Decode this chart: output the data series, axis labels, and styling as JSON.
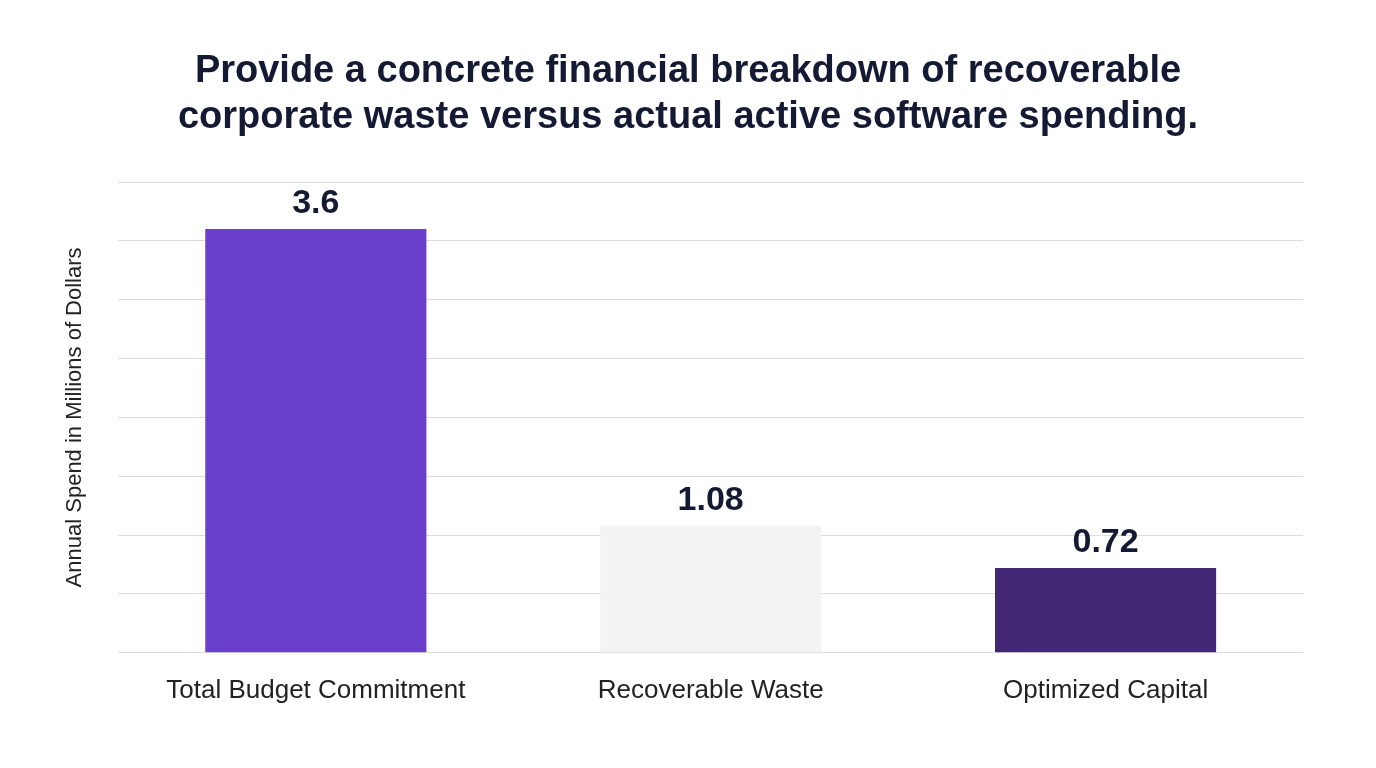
{
  "chart_data": {
    "type": "bar",
    "title": "Provide a concrete financial breakdown of recoverable corporate waste versus actual active software spending.",
    "ylabel": "Annual Spend in Millions of Dollars",
    "categories": [
      "Total Budget Commitment",
      "Recoverable Waste",
      "Optimized Capital"
    ],
    "values": [
      3.6,
      1.08,
      0.72
    ],
    "colors": [
      "#6a3fcc",
      "#f3f3f3",
      "#422874"
    ],
    "ylim": [
      0,
      4
    ],
    "yticks": [
      {
        "value": 0,
        "label": null
      },
      {
        "value": 0.5,
        "label": null
      },
      {
        "value": 1,
        "label": null
      },
      {
        "value": 1.5,
        "label": null
      },
      {
        "value": 2,
        "label": null
      },
      {
        "value": 2.5,
        "label": null
      },
      {
        "value": 3,
        "label": null
      },
      {
        "value": 3.5,
        "label": null
      },
      {
        "value": 4,
        "label": null
      }
    ],
    "tick_labels": "x",
    "grid": "y",
    "legend": false,
    "data_labels": true
  }
}
